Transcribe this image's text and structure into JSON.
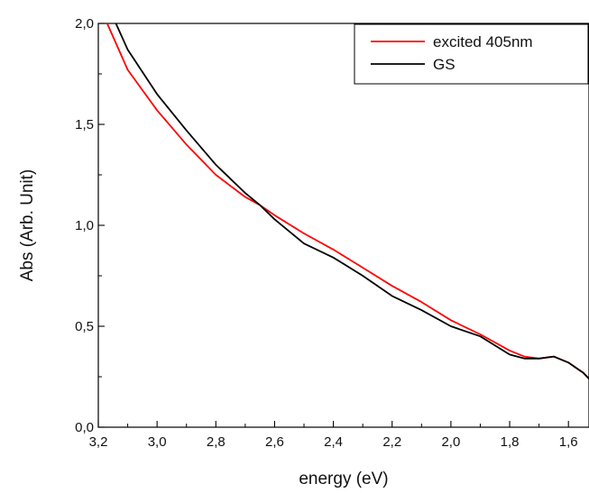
{
  "chart_data": {
    "type": "line",
    "title": "",
    "xlabel": "energy (eV)",
    "ylabel": "Abs (Arb. Unit)",
    "xlim": [
      3.2,
      1.53
    ],
    "x_reversed": true,
    "ylim": [
      0.0,
      2.0
    ],
    "x_ticks": [
      3.2,
      3.0,
      2.8,
      2.6,
      2.4,
      2.2,
      2.0,
      1.8,
      1.6
    ],
    "x_tick_labels": [
      "3,2",
      "3,0",
      "2,8",
      "2,6",
      "2,4",
      "2,2",
      "2,0",
      "1,8",
      "1,6"
    ],
    "y_ticks": [
      0.0,
      0.5,
      1.0,
      1.5,
      2.0
    ],
    "y_tick_labels": [
      "0,0",
      "0,5",
      "1,0",
      "1,5",
      "2,0"
    ],
    "grid": false,
    "legend_position": "top-right",
    "series": [
      {
        "name": "excited 405nm",
        "color": "#ff0000",
        "x": [
          3.17,
          3.1,
          3.0,
          2.9,
          2.8,
          2.7,
          2.65,
          2.6,
          2.5,
          2.4,
          2.3,
          2.2,
          2.1,
          2.0,
          1.9,
          1.8,
          1.75,
          1.7,
          1.65,
          1.6,
          1.55,
          1.53
        ],
        "y": [
          2.0,
          1.77,
          1.57,
          1.4,
          1.25,
          1.14,
          1.1,
          1.05,
          0.96,
          0.88,
          0.79,
          0.7,
          0.62,
          0.53,
          0.46,
          0.38,
          0.35,
          0.34,
          0.35,
          0.32,
          0.27,
          0.24
        ]
      },
      {
        "name": "GS",
        "color": "#000000",
        "x": [
          3.14,
          3.1,
          3.0,
          2.9,
          2.8,
          2.7,
          2.65,
          2.6,
          2.5,
          2.4,
          2.3,
          2.2,
          2.1,
          2.0,
          1.9,
          1.8,
          1.75,
          1.7,
          1.65,
          1.6,
          1.55,
          1.53
        ],
        "y": [
          2.0,
          1.87,
          1.65,
          1.47,
          1.3,
          1.16,
          1.1,
          1.03,
          0.91,
          0.84,
          0.75,
          0.65,
          0.58,
          0.5,
          0.45,
          0.36,
          0.34,
          0.34,
          0.35,
          0.32,
          0.27,
          0.24
        ]
      }
    ]
  }
}
